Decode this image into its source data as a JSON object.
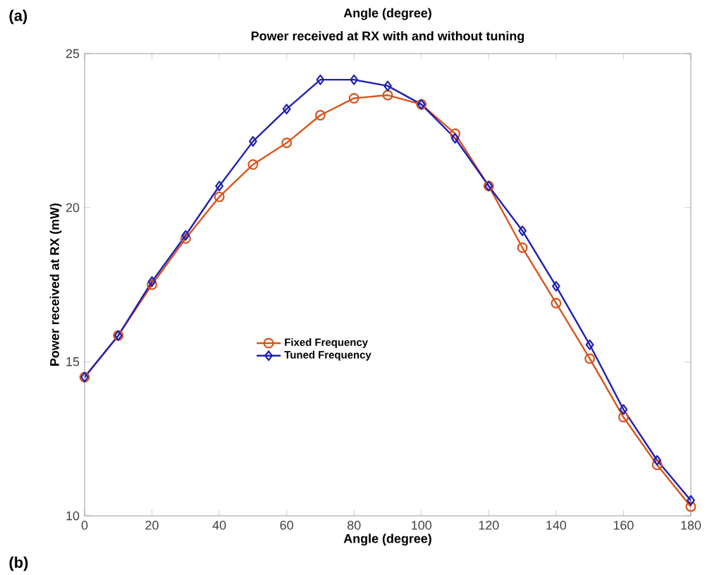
{
  "chart_data": {
    "type": "line",
    "title": "Power received at RX with and without tuning",
    "xlabel": "Angle (degree)",
    "ylabel": "Power received at RX (mW)",
    "annotations": [
      "(a)",
      "Angle (degree)",
      "(b)"
    ],
    "x": [
      0,
      10,
      20,
      30,
      40,
      50,
      60,
      70,
      80,
      90,
      100,
      110,
      120,
      130,
      140,
      150,
      160,
      170,
      180
    ],
    "series": [
      {
        "name": "Fixed Frequency",
        "color": "#d95319",
        "marker": "circle",
        "values": [
          14.5,
          15.85,
          17.5,
          19.0,
          20.35,
          21.4,
          22.1,
          23.0,
          23.55,
          23.65,
          23.35,
          22.4,
          20.7,
          18.7,
          16.9,
          15.1,
          13.2,
          11.65,
          10.3
        ]
      },
      {
        "name": "Tuned Frequency",
        "color": "#2020b0",
        "marker": "diamond",
        "values": [
          14.5,
          15.85,
          17.6,
          19.1,
          20.7,
          22.15,
          23.2,
          24.15,
          24.15,
          23.95,
          23.35,
          22.25,
          20.7,
          19.25,
          17.45,
          15.55,
          13.45,
          11.8,
          10.5
        ]
      }
    ],
    "xlim": [
      0,
      180
    ],
    "ylim": [
      10,
      25
    ],
    "xticks": [
      0,
      20,
      40,
      60,
      80,
      100,
      120,
      140,
      160,
      180
    ],
    "yticks": [
      10,
      15,
      20,
      25
    ],
    "grid": false,
    "legend": "center"
  }
}
